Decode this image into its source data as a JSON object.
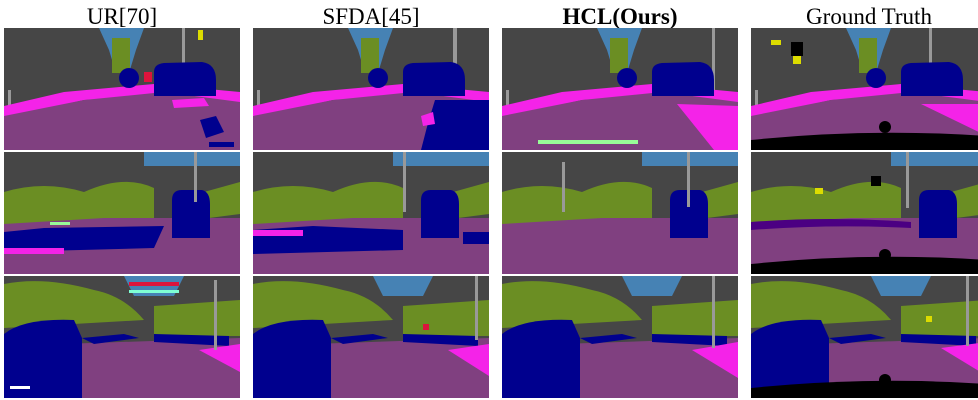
{
  "figure": {
    "columns": [
      {
        "label": "UR[70]",
        "bold": false
      },
      {
        "label": "SFDA[45]",
        "bold": false
      },
      {
        "label": "HCL(Ours)",
        "bold": true
      },
      {
        "label": "Ground Truth",
        "bold": false
      }
    ]
  },
  "palette": {
    "road": "#804080",
    "building": "#464646",
    "vegetation": "#6b8e23",
    "sky": "#4682b4",
    "car": "#00008e",
    "sidewalk": "#f423e8",
    "pole": "#999999",
    "traffic_sign": "#dcdc00",
    "traffic_light": "#faaa1e",
    "person": "#dc143c",
    "terrain": "#98fb98",
    "void": "#000000"
  }
}
